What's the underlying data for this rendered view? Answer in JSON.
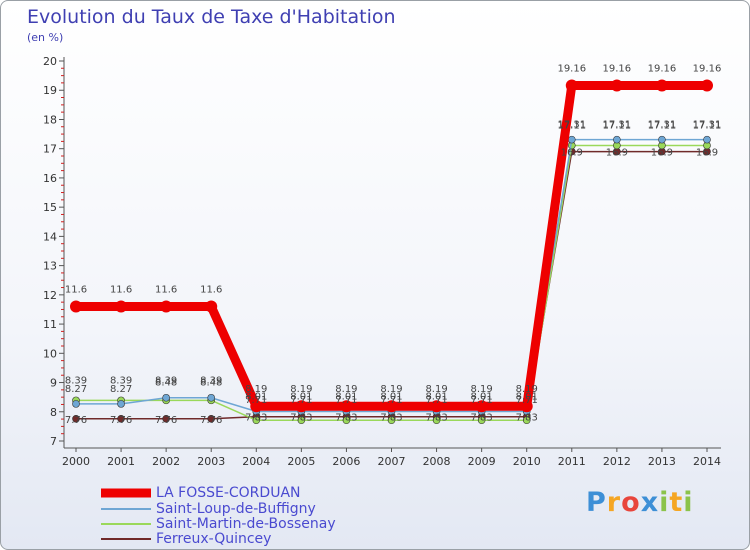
{
  "chart_data": {
    "type": "line",
    "title": "Evolution du Taux de Taxe d'Habitation",
    "subtitle": "(en %)",
    "x": [
      "2000",
      "2001",
      "2002",
      "2003",
      "2004",
      "2005",
      "2006",
      "2007",
      "2008",
      "2009",
      "2010",
      "2011",
      "2012",
      "2013",
      "2014"
    ],
    "ylim": [
      7,
      20
    ],
    "yticks": [
      7,
      8,
      9,
      10,
      11,
      12,
      13,
      14,
      15,
      16,
      17,
      18,
      19,
      20
    ],
    "grid": false,
    "legend_position": "bottom-left",
    "series": [
      {
        "name": "LA FOSSE-CORDUAN",
        "color": "#ee0000",
        "values": [
          11.6,
          11.6,
          11.6,
          11.6,
          8.19,
          8.19,
          8.19,
          8.19,
          8.19,
          8.19,
          8.19,
          19.16,
          19.16,
          19.16,
          19.16
        ],
        "labels": [
          "11.6",
          "11.6",
          "11.6",
          "11.6",
          "8.19",
          "8.19",
          "8.19",
          "8.19",
          "8.19",
          "8.19",
          "8.19",
          "19.16",
          "19.16",
          "19.16",
          "19.16"
        ]
      },
      {
        "name": "Saint-Loup-de-Buffigny",
        "color": "#6ea6d4",
        "values": [
          8.27,
          8.27,
          8.48,
          8.48,
          8.01,
          8.01,
          8.01,
          8.01,
          8.01,
          8.01,
          8.01,
          17.31,
          17.31,
          17.31,
          17.31
        ],
        "labels": [
          "8.27",
          "8.27",
          "8.48",
          "8.48",
          "8.01",
          "8.01",
          "8.01",
          "8.01",
          "8.01",
          "8.01",
          "8.01",
          "17.31",
          "17.31",
          "17.31",
          "17.31"
        ]
      },
      {
        "name": "Saint-Martin-de-Bossenay",
        "color": "#9ad85a",
        "values": [
          8.39,
          8.39,
          8.39,
          8.39,
          7.71,
          7.71,
          7.71,
          7.71,
          7.71,
          7.71,
          7.71,
          17.11,
          17.11,
          17.11,
          17.11
        ],
        "labels": [
          "8.39",
          "8.39",
          "8.39",
          "8.39",
          "7.71",
          "7.71",
          "7.71",
          "7.71",
          "7.71",
          "7.71",
          "7.71",
          "17.11",
          "17.11",
          "17.11",
          "17.11"
        ]
      },
      {
        "name": "Ferreux-Quincey",
        "color": "#702a2a",
        "values": [
          7.76,
          7.76,
          7.76,
          7.76,
          7.83,
          7.83,
          7.83,
          7.83,
          7.83,
          7.83,
          7.83,
          16.9,
          16.9,
          16.9,
          16.9
        ],
        "labels": [
          "7.76",
          "7.76",
          "7.76",
          "7.76",
          "7.83",
          "7.83",
          "7.83",
          "7.83",
          "7.83",
          "7.83",
          "7.83",
          "16.9",
          "16.9",
          "16.9",
          "16.9"
        ]
      }
    ]
  },
  "logo": {
    "letters": [
      "P",
      "r",
      "o",
      "x",
      "i",
      "t",
      "i"
    ],
    "colors": [
      "#3d8fd6",
      "#f5a623",
      "#e8453c",
      "#3d8fd6",
      "#8bc34a",
      "#f5a623",
      "#8bc34a"
    ]
  }
}
